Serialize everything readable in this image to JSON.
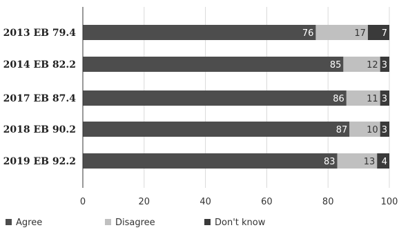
{
  "chart_data": {
    "type": "bar",
    "orientation": "horizontal",
    "stacked": true,
    "categories": [
      "2013 EB 79.4",
      "2014 EB 82.2",
      "2017 EB 87.4",
      "2018 EB 90.2",
      "2019 EB 92.2"
    ],
    "series": [
      {
        "name": "Agree",
        "values": [
          76,
          85,
          86,
          87,
          83
        ],
        "color": "#4d4d4d"
      },
      {
        "name": "Disagree",
        "values": [
          17,
          12,
          11,
          10,
          13
        ],
        "color": "#c0c0c0"
      },
      {
        "name": "Don't know",
        "values": [
          7,
          3,
          3,
          3,
          4
        ],
        "color": "#3a3a3a"
      }
    ],
    "xlim": [
      0,
      100
    ],
    "xticks": [
      0,
      20,
      40,
      60,
      80,
      100
    ],
    "grid": true,
    "legend_position": "bottom-left"
  }
}
